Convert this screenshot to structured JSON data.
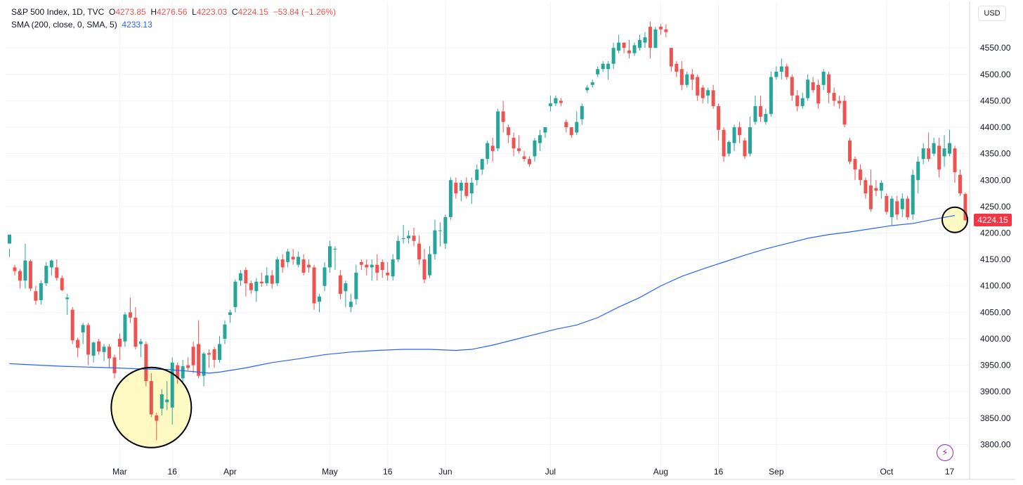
{
  "legend": {
    "title": "S&P 500 Index, 1D, TVC",
    "open_label": "O",
    "open": "4273.85",
    "high_label": "H",
    "high": "4276.56",
    "low_label": "L",
    "low": "4223.03",
    "close_label": "C",
    "close": "4224.15",
    "change": "−53.84 (−1.26%)",
    "sma_title": "SMA (200, close, 0, SMA, 5)",
    "sma_value": "4233.13"
  },
  "toolbar": {
    "currency": "USD",
    "bolt_icon": "⚡"
  },
  "colors": {
    "up": "#26a69a",
    "down": "#ef5350",
    "sma": "#2962ff",
    "badge": "#f23645",
    "highlight": "#fff9c4",
    "grid": "#f0f3fa"
  },
  "chart_data": {
    "type": "candlestick",
    "title": "S&P 500 Index, 1D, TVC",
    "y_axis": {
      "ticks": [
        3800,
        3850,
        3900,
        3950,
        4000,
        4050,
        4100,
        4150,
        4200,
        4250,
        4300,
        4350,
        4400,
        4450,
        4500,
        4550
      ],
      "range": [
        3775,
        4610
      ],
      "position": "right"
    },
    "x_axis": {
      "labels": [
        {
          "label": "Mar",
          "index": 21
        },
        {
          "label": "16",
          "index": 31
        },
        {
          "label": "Apr",
          "index": 42
        },
        {
          "label": "May",
          "index": 61
        },
        {
          "label": "16",
          "index": 72
        },
        {
          "label": "Jun",
          "index": 83
        },
        {
          "label": "Jul",
          "index": 103
        },
        {
          "label": "Aug",
          "index": 124
        },
        {
          "label": "16",
          "index": 135
        },
        {
          "label": "Sep",
          "index": 146
        },
        {
          "label": "Oct",
          "index": 167
        },
        {
          "label": "17",
          "index": 179
        }
      ]
    },
    "grid": true,
    "last_price_label": "4224.15",
    "candles": [
      [
        4180,
        4197,
        4170,
        4155
      ],
      [
        4135,
        4128,
        4140,
        4120
      ],
      [
        4128,
        4110,
        4132,
        4095
      ],
      [
        4110,
        4148,
        4180,
        4095
      ],
      [
        4147,
        4095,
        4150,
        4090
      ],
      [
        4090,
        4072,
        4100,
        4065
      ],
      [
        4073,
        4105,
        4110,
        4065
      ],
      [
        4105,
        4138,
        4145,
        4100
      ],
      [
        4135,
        4148,
        4150,
        4120
      ],
      [
        4135,
        4115,
        4150,
        4110
      ],
      [
        4115,
        4092,
        4120,
        4090
      ],
      [
        4075,
        4078,
        4085,
        4045
      ],
      [
        4055,
        3997,
        4060,
        3990
      ],
      [
        3998,
        3983,
        4002,
        3965
      ],
      [
        4012,
        4026,
        4030,
        3990
      ],
      [
        4026,
        3970,
        4030,
        3950
      ],
      [
        3968,
        3993,
        3995,
        3955
      ],
      [
        3995,
        3976,
        4000,
        3970
      ],
      [
        3975,
        3985,
        3990,
        3958
      ],
      [
        3985,
        3963,
        3990,
        3945
      ],
      [
        3965,
        3935,
        3970,
        3925
      ],
      [
        4000,
        3985,
        4010,
        3960
      ],
      [
        3995,
        4046,
        4050,
        3985
      ],
      [
        4050,
        4040,
        4078,
        4030
      ],
      [
        4040,
        3985,
        4060,
        3980
      ],
      [
        3990,
        3995,
        4000,
        3965
      ],
      [
        3990,
        3920,
        3995,
        3910
      ],
      [
        3920,
        3857,
        3935,
        3852
      ],
      [
        3855,
        3845,
        3860,
        3808
      ],
      [
        3868,
        3895,
        3905,
        3855
      ],
      [
        3880,
        3885,
        3920,
        3865
      ],
      [
        3870,
        3955,
        3965,
        3838
      ],
      [
        3950,
        3925,
        3955,
        3915
      ],
      [
        3925,
        3948,
        3960,
        3915
      ],
      [
        3950,
        3945,
        3965,
        3940
      ],
      [
        3985,
        3950,
        3995,
        3935
      ],
      [
        3990,
        3930,
        4035,
        3925
      ],
      [
        3930,
        3972,
        3975,
        3910
      ],
      [
        3973,
        3970,
        3980,
        3945
      ],
      [
        3980,
        3960,
        3985,
        3945
      ],
      [
        3960,
        3990,
        4005,
        3955
      ],
      [
        4000,
        4027,
        4035,
        3990
      ],
      [
        4045,
        4050,
        4055,
        4030
      ],
      [
        4060,
        4108,
        4112,
        4050
      ],
      [
        4110,
        4124,
        4130,
        4100
      ],
      [
        4130,
        4105,
        4135,
        4080
      ],
      [
        4105,
        4092,
        4110,
        4085
      ],
      [
        4090,
        4108,
        4115,
        4070
      ],
      [
        4108,
        4105,
        4125,
        4098
      ],
      [
        4105,
        4120,
        4135,
        4100
      ],
      [
        4120,
        4104,
        4130,
        4095
      ],
      [
        4105,
        4150,
        4155,
        4100
      ],
      [
        4150,
        4135,
        4160,
        4125
      ],
      [
        4145,
        4165,
        4170,
        4135
      ],
      [
        4155,
        4150,
        4170,
        4140
      ],
      [
        4140,
        4155,
        4165,
        4135
      ],
      [
        4150,
        4125,
        4160,
        4120
      ],
      [
        4140,
        4135,
        4150,
        4125
      ],
      [
        4135,
        4067,
        4140,
        4055
      ],
      [
        4070,
        4080,
        4085,
        4050
      ],
      [
        4100,
        4135,
        4145,
        4090
      ],
      [
        4135,
        4175,
        4185,
        4125
      ],
      [
        4170,
        4170,
        4175,
        4130
      ],
      [
        4120,
        4085,
        4130,
        4075
      ],
      [
        4090,
        4105,
        4110,
        4060
      ],
      [
        4060,
        4070,
        4085,
        4050
      ],
      [
        4075,
        4125,
        4140,
        4065
      ],
      [
        4145,
        4140,
        4150,
        4130
      ],
      [
        4140,
        4135,
        4150,
        4120
      ],
      [
        4135,
        4140,
        4150,
        4110
      ],
      [
        4140,
        4125,
        4160,
        4110
      ],
      [
        4145,
        4130,
        4150,
        4115
      ],
      [
        4125,
        4120,
        4145,
        4110
      ],
      [
        4118,
        4150,
        4160,
        4110
      ],
      [
        4150,
        4185,
        4195,
        4145
      ],
      [
        4190,
        4190,
        4215,
        4180
      ],
      [
        4190,
        4195,
        4205,
        4180
      ],
      [
        4195,
        4185,
        4210,
        4175
      ],
      [
        4180,
        4150,
        4195,
        4140
      ],
      [
        4150,
        4112,
        4170,
        4105
      ],
      [
        4120,
        4160,
        4175,
        4115
      ],
      [
        4160,
        4205,
        4225,
        4150
      ],
      [
        4205,
        4205,
        4220,
        4175
      ],
      [
        4180,
        4230,
        4235,
        4170
      ],
      [
        4230,
        4300,
        4305,
        4225
      ],
      [
        4295,
        4275,
        4305,
        4265
      ],
      [
        4280,
        4295,
        4300,
        4260
      ],
      [
        4295,
        4270,
        4305,
        4265
      ],
      [
        4275,
        4295,
        4305,
        4255
      ],
      [
        4300,
        4320,
        4330,
        4290
      ],
      [
        4320,
        4340,
        4340,
        4310
      ],
      [
        4340,
        4370,
        4375,
        4330
      ],
      [
        4365,
        4355,
        4380,
        4335
      ],
      [
        4360,
        4430,
        4435,
        4355
      ],
      [
        4430,
        4410,
        4450,
        4390
      ],
      [
        4400,
        4385,
        4405,
        4370
      ],
      [
        4380,
        4360,
        4390,
        4345
      ],
      [
        4360,
        4355,
        4385,
        4350
      ],
      [
        4345,
        4340,
        4355,
        4335
      ],
      [
        4340,
        4330,
        4345,
        4325
      ],
      [
        4345,
        4375,
        4380,
        4335
      ],
      [
        4370,
        4385,
        4395,
        4355
      ],
      [
        4390,
        4400,
        4400,
        4380
      ],
      [
        4440,
        4445,
        4460,
        4430
      ],
      [
        4445,
        4455,
        4460,
        4440
      ],
      [
        4450,
        4446,
        4455,
        4440
      ],
      [
        4410,
        4400,
        4415,
        4390
      ],
      [
        4400,
        4385,
        4400,
        4380
      ],
      [
        4390,
        4410,
        4430,
        4385
      ],
      [
        4415,
        4440,
        4445,
        4405
      ],
      [
        4470,
        4475,
        4480,
        4465
      ],
      [
        4480,
        4485,
        4490,
        4475
      ],
      [
        4500,
        4510,
        4515,
        4495
      ],
      [
        4510,
        4520,
        4525,
        4505
      ],
      [
        4510,
        4520,
        4525,
        4490
      ],
      [
        4520,
        4550,
        4560,
        4510
      ],
      [
        4545,
        4560,
        4575,
        4540
      ],
      [
        4560,
        4550,
        4560,
        4540
      ],
      [
        4545,
        4540,
        4565,
        4530
      ],
      [
        4540,
        4555,
        4560,
        4535
      ],
      [
        4550,
        4565,
        4575,
        4545
      ],
      [
        4560,
        4570,
        4580,
        4550
      ],
      [
        4590,
        4550,
        4600,
        4530
      ],
      [
        4550,
        4585,
        4590,
        4550
      ],
      [
        4590,
        4585,
        4595,
        4575
      ],
      [
        4585,
        4580,
        4595,
        4570
      ],
      [
        4550,
        4515,
        4550,
        4505
      ],
      [
        4520,
        4505,
        4525,
        4495
      ],
      [
        4510,
        4480,
        4525,
        4470
      ],
      [
        4480,
        4500,
        4505,
        4475
      ],
      [
        4500,
        4490,
        4510,
        4470
      ],
      [
        4495,
        4460,
        4500,
        4450
      ],
      [
        4475,
        4455,
        4480,
        4445
      ],
      [
        4460,
        4470,
        4475,
        4445
      ],
      [
        4470,
        4440,
        4480,
        4435
      ],
      [
        4440,
        4395,
        4445,
        4375
      ],
      [
        4395,
        4345,
        4400,
        4335
      ],
      [
        4350,
        4372,
        4375,
        4345
      ],
      [
        4370,
        4400,
        4405,
        4355
      ],
      [
        4400,
        4385,
        4410,
        4370
      ],
      [
        4375,
        4345,
        4380,
        4340
      ],
      [
        4350,
        4400,
        4420,
        4345
      ],
      [
        4410,
        4440,
        4460,
        4405
      ],
      [
        4440,
        4420,
        4460,
        4410
      ],
      [
        4410,
        4425,
        4435,
        4405
      ],
      [
        4425,
        4495,
        4505,
        4420
      ],
      [
        4495,
        4505,
        4515,
        4490
      ],
      [
        4505,
        4515,
        4530,
        4490
      ],
      [
        4515,
        4495,
        4520,
        4490
      ],
      [
        4495,
        4460,
        4500,
        4450
      ],
      [
        4460,
        4440,
        4470,
        4430
      ],
      [
        4440,
        4455,
        4465,
        4435
      ],
      [
        4455,
        4490,
        4500,
        4450
      ],
      [
        4485,
        4470,
        4495,
        4465
      ],
      [
        4480,
        4445,
        4490,
        4435
      ],
      [
        4480,
        4505,
        4510,
        4470
      ],
      [
        4500,
        4465,
        4505,
        4445
      ],
      [
        4465,
        4450,
        4475,
        4440
      ],
      [
        4450,
        4445,
        4460,
        4435
      ],
      [
        4450,
        4405,
        4460,
        4400
      ],
      [
        4375,
        4335,
        4380,
        4330
      ],
      [
        4340,
        4320,
        4345,
        4300
      ],
      [
        4320,
        4300,
        4330,
        4290
      ],
      [
        4300,
        4275,
        4305,
        4265
      ],
      [
        4290,
        4245,
        4320,
        4240
      ],
      [
        4285,
        4280,
        4300,
        4270
      ],
      [
        4280,
        4295,
        4300,
        4265
      ],
      [
        4270,
        4240,
        4275,
        4235
      ],
      [
        4230,
        4265,
        4270,
        4215
      ],
      [
        4260,
        4235,
        4270,
        4225
      ],
      [
        4245,
        4265,
        4275,
        4230
      ],
      [
        4265,
        4230,
        4270,
        4225
      ],
      [
        4235,
        4310,
        4320,
        4225
      ],
      [
        4300,
        4335,
        4345,
        4275
      ],
      [
        4340,
        4360,
        4370,
        4330
      ],
      [
        4360,
        4340,
        4390,
        4335
      ],
      [
        4350,
        4370,
        4380,
        4345
      ],
      [
        4365,
        4320,
        4380,
        4305
      ],
      [
        4345,
        4360,
        4385,
        4325
      ],
      [
        4350,
        4370,
        4395,
        4345
      ],
      [
        4360,
        4315,
        4365,
        4295
      ],
      [
        4310,
        4275,
        4320,
        4270
      ],
      [
        4273.85,
        4224.15,
        4276.56,
        4223.03
      ]
    ],
    "sma": [
      [
        0,
        3953
      ],
      [
        10,
        3948
      ],
      [
        20,
        3945
      ],
      [
        25,
        3943
      ],
      [
        30,
        3942
      ],
      [
        35,
        3938
      ],
      [
        38,
        3935
      ],
      [
        40,
        3937
      ],
      [
        45,
        3945
      ],
      [
        50,
        3955
      ],
      [
        55,
        3962
      ],
      [
        60,
        3970
      ],
      [
        65,
        3975
      ],
      [
        70,
        3978
      ],
      [
        75,
        3980
      ],
      [
        80,
        3980
      ],
      [
        85,
        3978
      ],
      [
        88,
        3980
      ],
      [
        92,
        3988
      ],
      [
        96,
        3998
      ],
      [
        100,
        4008
      ],
      [
        104,
        4018
      ],
      [
        108,
        4026
      ],
      [
        112,
        4040
      ],
      [
        116,
        4060
      ],
      [
        120,
        4078
      ],
      [
        124,
        4100
      ],
      [
        128,
        4118
      ],
      [
        132,
        4132
      ],
      [
        136,
        4145
      ],
      [
        140,
        4158
      ],
      [
        144,
        4170
      ],
      [
        148,
        4180
      ],
      [
        152,
        4190
      ],
      [
        156,
        4197
      ],
      [
        160,
        4202
      ],
      [
        164,
        4208
      ],
      [
        168,
        4214
      ],
      [
        172,
        4218
      ],
      [
        176,
        4226
      ],
      [
        180,
        4233.13
      ]
    ],
    "highlights": [
      {
        "center_index": 27,
        "center_price": 3870
      },
      {
        "center_index": 180,
        "center_price": 4225
      }
    ]
  }
}
